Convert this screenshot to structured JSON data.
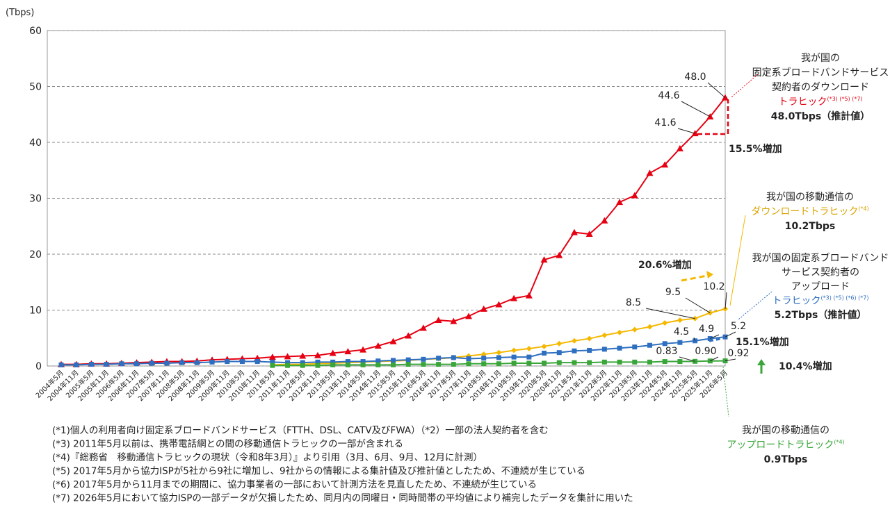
{
  "chart_data": {
    "type": "line",
    "y_unit": "(Tbps)",
    "categories": [
      "2004年5月",
      "2004年11月",
      "2005年5月",
      "2005年11月",
      "2006年5月",
      "2006年11月",
      "2007年5月",
      "2007年11月",
      "2008年5月",
      "2008年11月",
      "2009年5月",
      "2009年11月",
      "2010年5月",
      "2010年11月",
      "2011年5月",
      "2011年11月",
      "2012年5月",
      "2012年11月",
      "2013年5月",
      "2013年11月",
      "2014年5月",
      "2014年11月",
      "2015年5月",
      "2015年11月",
      "2016年5月",
      "2016年11月",
      "2017年5月",
      "2017年11月",
      "2018年5月",
      "2018年11月",
      "2019年5月",
      "2019年11月",
      "2020年5月",
      "2020年11月",
      "2021年5月",
      "2021年11月",
      "2022年5月",
      "2022年11月",
      "2023年5月",
      "2023年11月",
      "2024年5月",
      "2024年11月",
      "2025年5月",
      "2025年11月",
      "2026年5月"
    ],
    "ylim": [
      0,
      60
    ],
    "yticks": [
      0,
      10,
      20,
      30,
      40,
      50,
      60
    ],
    "grid": true,
    "series": [
      {
        "color": "#e60012",
        "marker": "triangle",
        "values": [
          0.3,
          0.3,
          0.4,
          0.4,
          0.5,
          0.6,
          0.7,
          0.8,
          0.8,
          0.9,
          1.1,
          1.2,
          1.3,
          1.4,
          1.6,
          1.7,
          1.8,
          1.9,
          2.3,
          2.6,
          2.9,
          3.6,
          4.4,
          5.4,
          6.8,
          8.2,
          8.0,
          8.9,
          10.2,
          11.0,
          12.1,
          12.6,
          19.0,
          19.8,
          23.9,
          23.6,
          26.0,
          29.3,
          30.5,
          34.5,
          36.0,
          38.9,
          41.6,
          44.6,
          48.0
        ],
        "value_labels": [
          null,
          null,
          null,
          null,
          null,
          null,
          null,
          null,
          null,
          null,
          null,
          null,
          null,
          null,
          null,
          null,
          null,
          null,
          null,
          null,
          null,
          null,
          null,
          null,
          null,
          null,
          null,
          null,
          null,
          null,
          null,
          null,
          null,
          null,
          null,
          null,
          null,
          null,
          null,
          null,
          null,
          null,
          "41.6",
          "44.6",
          "48.0"
        ]
      },
      {
        "color": "#f5b800",
        "marker": "diamond",
        "values": [
          null,
          null,
          null,
          null,
          null,
          null,
          null,
          null,
          null,
          null,
          null,
          null,
          null,
          null,
          0.2,
          0.3,
          0.3,
          0.4,
          0.5,
          0.6,
          0.7,
          0.8,
          0.9,
          1.0,
          1.2,
          1.3,
          1.5,
          1.8,
          2.1,
          2.4,
          2.8,
          3.1,
          3.5,
          4.0,
          4.5,
          4.9,
          5.5,
          6.0,
          6.5,
          7.0,
          7.7,
          8.2,
          8.5,
          9.5,
          10.2
        ],
        "value_labels": [
          null,
          null,
          null,
          null,
          null,
          null,
          null,
          null,
          null,
          null,
          null,
          null,
          null,
          null,
          null,
          null,
          null,
          null,
          null,
          null,
          null,
          null,
          null,
          null,
          null,
          null,
          null,
          null,
          null,
          null,
          null,
          null,
          null,
          null,
          null,
          null,
          null,
          null,
          null,
          null,
          null,
          null,
          "8.5",
          "9.5",
          "10.2"
        ]
      },
      {
        "color": "#2e6fc0",
        "marker": "square",
        "values": [
          0.2,
          0.2,
          0.3,
          0.3,
          0.4,
          0.4,
          0.5,
          0.5,
          0.6,
          0.6,
          0.7,
          0.8,
          0.8,
          0.8,
          0.7,
          0.6,
          0.6,
          0.7,
          0.7,
          0.8,
          0.8,
          0.9,
          1.0,
          1.1,
          1.2,
          1.4,
          1.5,
          1.3,
          1.4,
          1.5,
          1.6,
          1.6,
          2.3,
          2.4,
          2.7,
          2.8,
          3.0,
          3.2,
          3.4,
          3.7,
          4.0,
          4.2,
          4.5,
          4.9,
          5.2
        ],
        "value_labels": [
          null,
          null,
          null,
          null,
          null,
          null,
          null,
          null,
          null,
          null,
          null,
          null,
          null,
          null,
          null,
          null,
          null,
          null,
          null,
          null,
          null,
          null,
          null,
          null,
          null,
          null,
          null,
          null,
          null,
          null,
          null,
          null,
          null,
          null,
          null,
          null,
          null,
          null,
          null,
          null,
          null,
          null,
          "4.5",
          "4.9",
          "5.2"
        ]
      },
      {
        "color": "#3aa63a",
        "marker": "square",
        "values": [
          null,
          null,
          null,
          null,
          null,
          null,
          null,
          null,
          null,
          null,
          null,
          null,
          null,
          null,
          0.1,
          0.1,
          0.1,
          0.1,
          0.2,
          0.2,
          0.2,
          0.2,
          0.2,
          0.3,
          0.3,
          0.3,
          0.3,
          0.4,
          0.4,
          0.4,
          0.5,
          0.5,
          0.5,
          0.6,
          0.6,
          0.6,
          0.7,
          0.7,
          0.7,
          0.7,
          0.8,
          0.8,
          0.83,
          0.9,
          0.92
        ],
        "value_labels": [
          null,
          null,
          null,
          null,
          null,
          null,
          null,
          null,
          null,
          null,
          null,
          null,
          null,
          null,
          null,
          null,
          null,
          null,
          null,
          null,
          null,
          null,
          null,
          null,
          null,
          null,
          null,
          null,
          null,
          null,
          null,
          null,
          null,
          null,
          null,
          null,
          null,
          null,
          null,
          null,
          null,
          null,
          "0.83",
          "0.90",
          "0.92"
        ]
      }
    ],
    "callouts": [
      {
        "lines": [
          "我が国の",
          "固定系ブロードバンドサービス",
          "契約者のダウンロード",
          {
            "text": "トラヒック",
            "note": "(*3) (*5) (*7)"
          },
          "48.0Tbps（推計値）"
        ]
      },
      {
        "lines": [
          "我が国の移動通信の",
          {
            "text": "ダウンロードトラヒック",
            "note": "(*4)"
          },
          "10.2Tbps"
        ]
      },
      {
        "lines": [
          "我が国の固定系ブロードバンド",
          "サービス契約者の",
          "アップロード",
          {
            "text": "トラヒック",
            "note": "(*3) (*5) (*6) (*7)"
          },
          "5.2Tbps（推計値）"
        ]
      },
      {
        "lines": [
          "我が国の移動通信の",
          {
            "text": "アップロードトラヒック",
            "note": "(*4)"
          },
          "0.9Tbps"
        ]
      }
    ],
    "growth": [
      "15.5%増加",
      "20.6%増加",
      "15.1%増加",
      "10.4%増加"
    ],
    "footnotes": [
      "(*1)個人の利用者向け固定系ブロードバンドサービス（FTTH、DSL、CATV及びFWA）（*2）一部の法人契約者を含む",
      "(*3) 2011年5月以前は、携帯電話網との間の移動通信トラヒックの一部が含まれる",
      "(*4)『総務省　移動通信トラヒックの現状（令和8年3月）』より引用（3月、6月、9月、12月に計測）",
      "(*5) 2017年5月から協力ISPが5社から9社に増加し、9社からの情報による集計値及び推計値としたため、不連続が生じている",
      "(*6) 2017年5月から11月までの期間に、協力事業者の一部において計測方法を見直したため、不連続が生じている",
      "(*7) 2026年5月において協力ISPの一部データが欠損したため、同月内の同曜日・同時間帯の平均値により補完したデータを集計に用いた"
    ]
  }
}
